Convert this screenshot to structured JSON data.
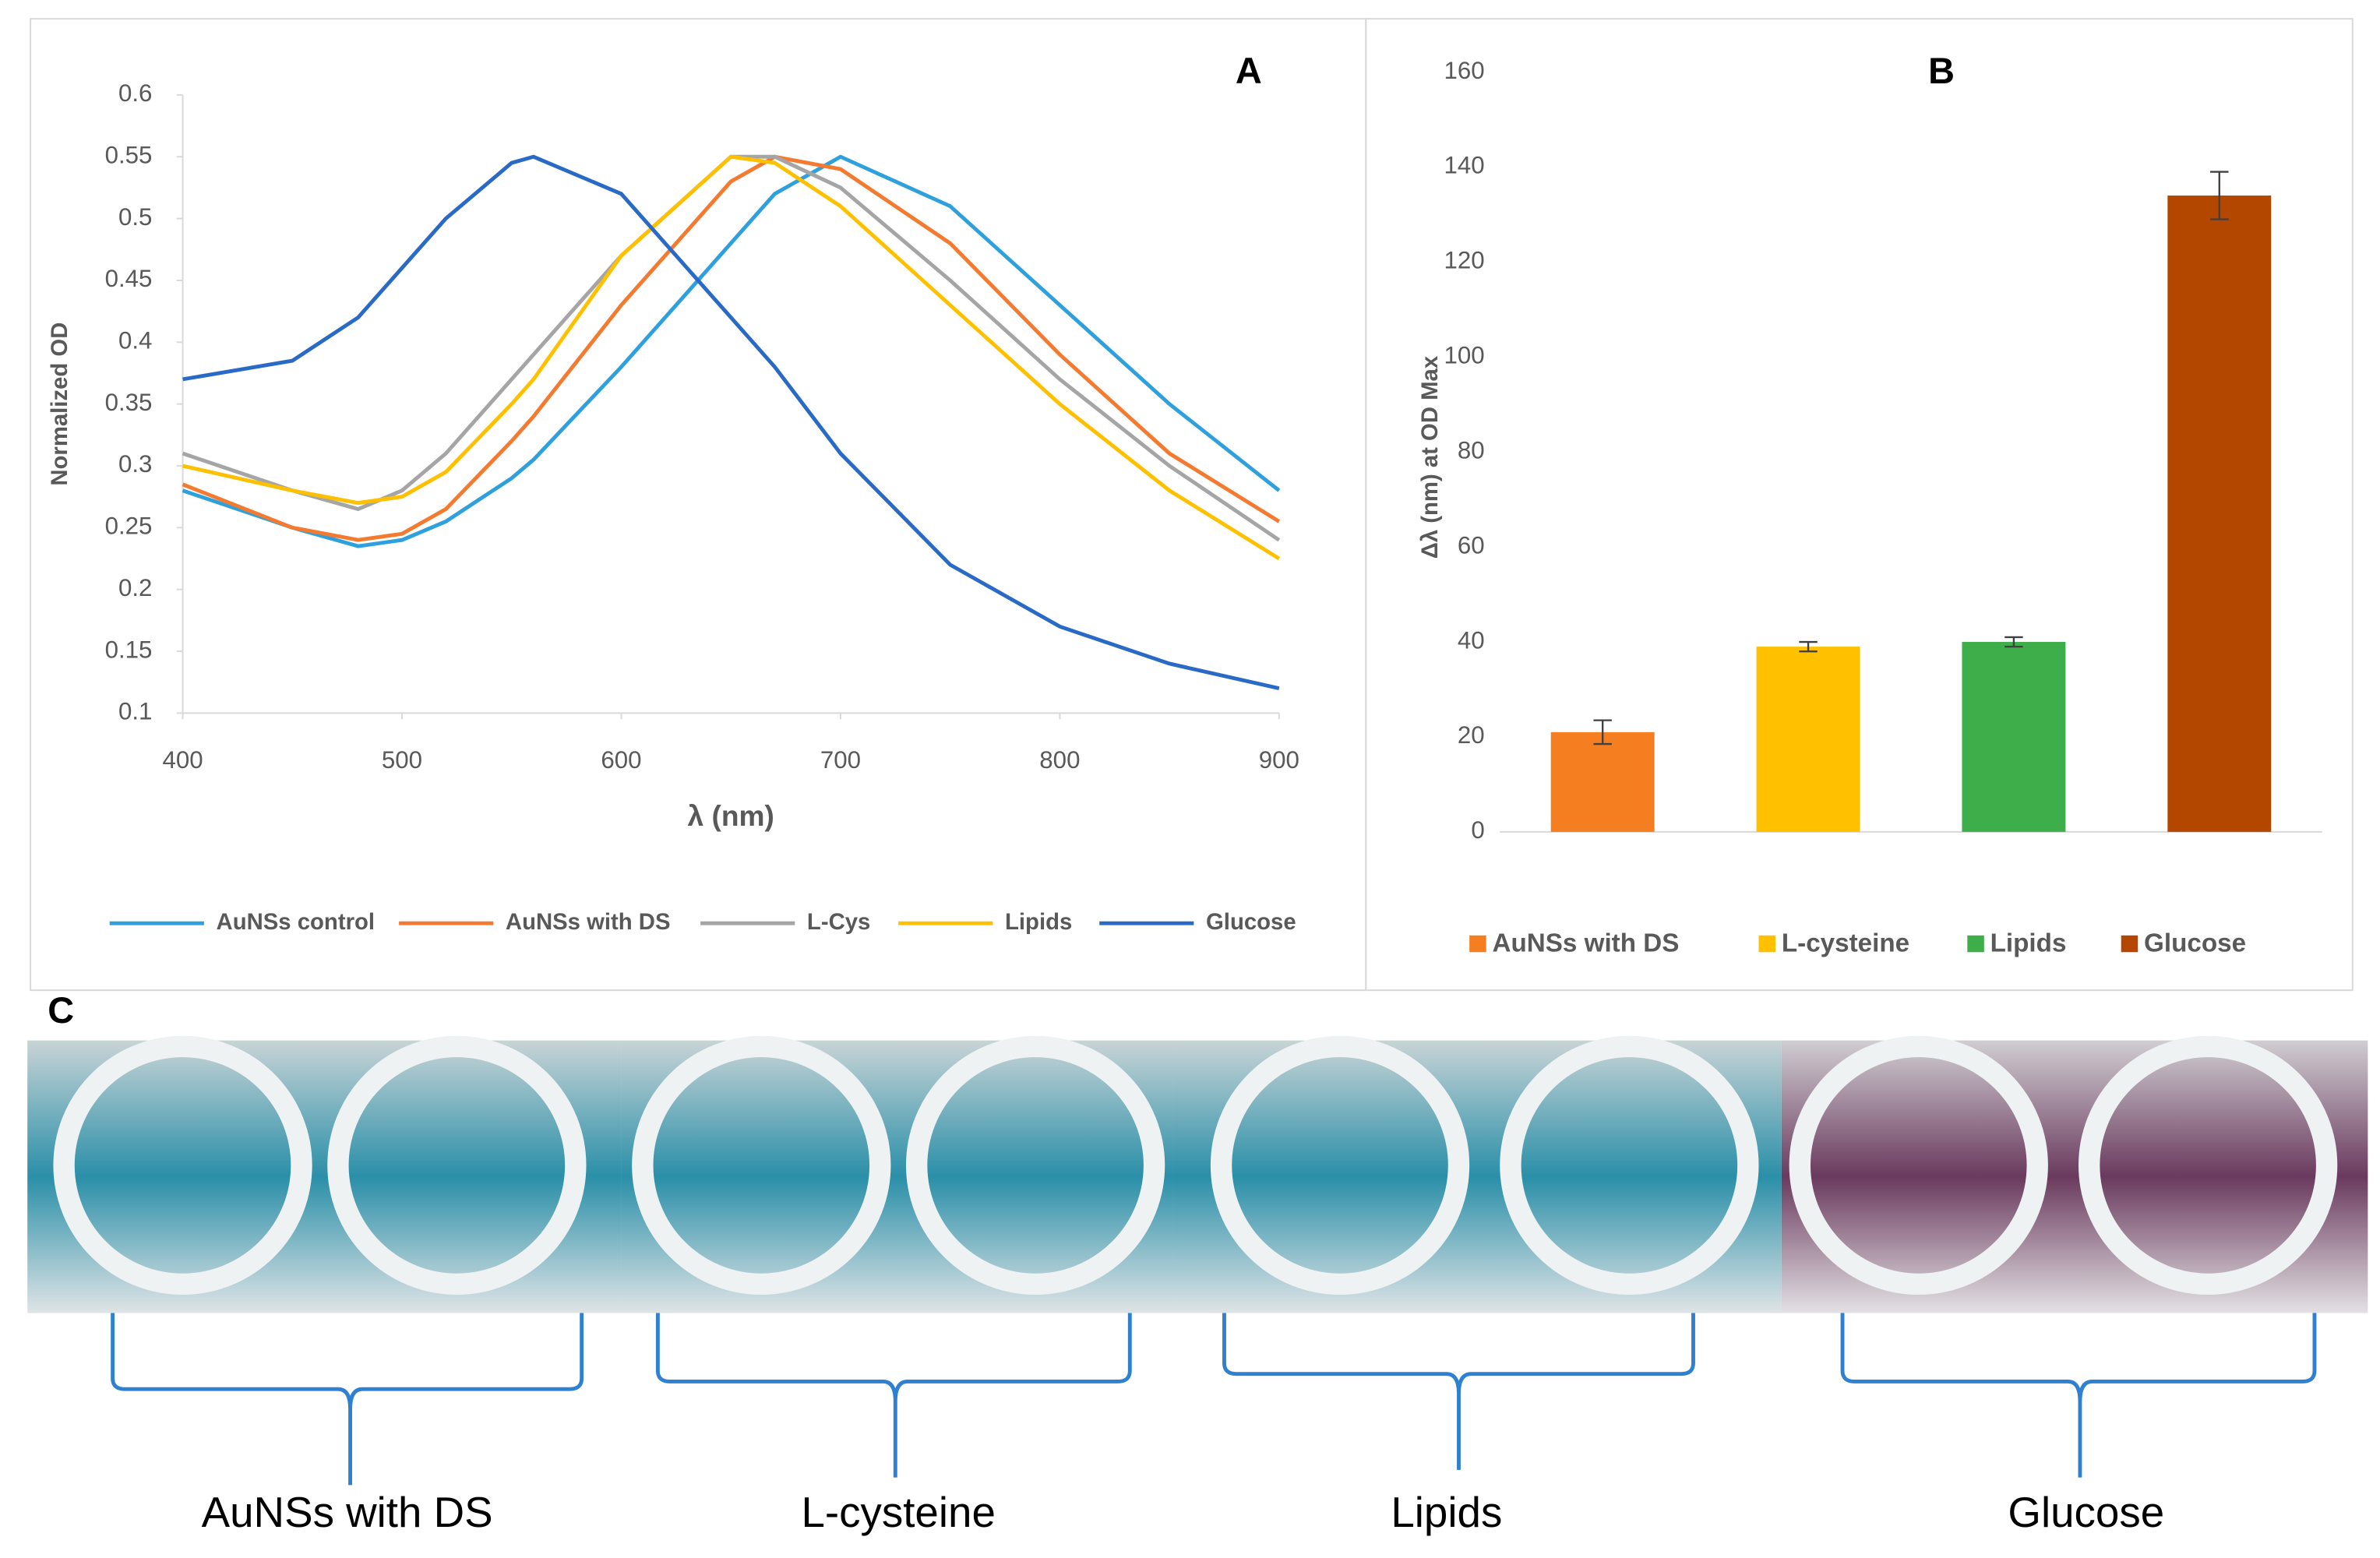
{
  "chart_data": [
    {
      "type": "line",
      "title": "A",
      "x_label": "λ (nm)",
      "y_label": "Normalized OD",
      "x": [
        400,
        450,
        480,
        500,
        520,
        550,
        560,
        600,
        650,
        670,
        700,
        750,
        800,
        850,
        900
      ],
      "series": [
        {
          "name": "AuNSs control",
          "color": "#2ea0dd",
          "values": [
            0.28,
            0.25,
            0.235,
            0.24,
            0.255,
            0.29,
            0.305,
            0.38,
            0.48,
            0.52,
            0.55,
            0.51,
            0.43,
            0.35,
            0.28
          ]
        },
        {
          "name": "AuNSs with DS",
          "color": "#f47a30",
          "values": [
            0.285,
            0.25,
            0.24,
            0.245,
            0.265,
            0.32,
            0.34,
            0.43,
            0.53,
            0.55,
            0.54,
            0.48,
            0.39,
            0.31,
            0.255
          ]
        },
        {
          "name": "L-Cys",
          "color": "#a5a5a5",
          "values": [
            0.31,
            0.28,
            0.265,
            0.28,
            0.31,
            0.37,
            0.39,
            0.47,
            0.55,
            0.55,
            0.525,
            0.45,
            0.37,
            0.3,
            0.24
          ]
        },
        {
          "name": "Lipids",
          "color": "#ffc000",
          "values": [
            0.3,
            0.28,
            0.27,
            0.275,
            0.295,
            0.35,
            0.37,
            0.47,
            0.55,
            0.545,
            0.51,
            0.43,
            0.35,
            0.28,
            0.225
          ]
        },
        {
          "name": "Glucose",
          "color": "#2a6ac7",
          "values": [
            0.37,
            0.385,
            0.42,
            0.46,
            0.5,
            0.545,
            0.55,
            0.52,
            0.42,
            0.38,
            0.31,
            0.22,
            0.17,
            0.14,
            0.12
          ]
        }
      ],
      "xlim": [
        400,
        900
      ],
      "xticks": [
        400,
        500,
        600,
        700,
        800,
        900
      ],
      "ylim": [
        0.1,
        0.6
      ],
      "yticks": [
        0.1,
        0.15,
        0.2,
        0.25,
        0.3,
        0.35,
        0.4,
        0.45,
        0.5,
        0.55,
        0.6
      ],
      "legend": "bottom"
    },
    {
      "type": "bar",
      "title": "B",
      "y_label": "Δλ (nm) at OD Max",
      "categories": [
        "AuNSs with DS",
        "L-cysteine",
        "Lipids",
        "Glucose"
      ],
      "values": [
        21,
        39,
        40,
        134
      ],
      "errors": [
        2.5,
        1,
        1,
        5
      ],
      "colors": [
        "#f57f20",
        "#ffc000",
        "#3dae49",
        "#b34700"
      ],
      "ylim": [
        0,
        160
      ],
      "yticks": [
        0,
        20,
        40,
        60,
        80,
        100,
        120,
        140,
        160
      ],
      "legend": "bottom"
    }
  ],
  "panel_c": {
    "label": "C",
    "groups": [
      "AuNSs with DS",
      "L-cysteine",
      "Lipids",
      "Glucose"
    ]
  }
}
